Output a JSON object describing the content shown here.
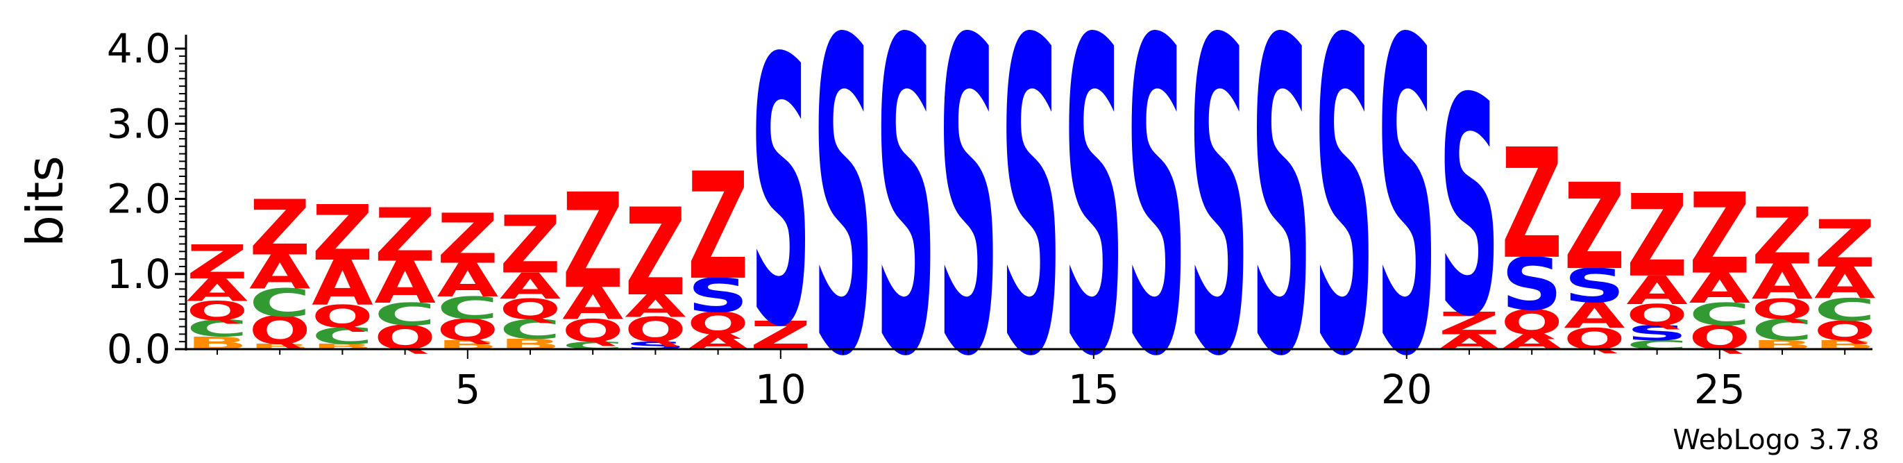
{
  "chart_data": {
    "type": "sequence-logo",
    "ylabel": "bits",
    "ylim": [
      0,
      4.0
    ],
    "y_ticks": [
      "0.0",
      "1.0",
      "2.0",
      "3.0",
      "4.0"
    ],
    "x_ticks": [
      "5",
      "10",
      "15",
      "20",
      "25"
    ],
    "x_tick_positions": [
      5,
      10,
      15,
      20,
      25
    ],
    "positions": [
      1,
      27
    ],
    "colors": {
      "Z": "#ff0000",
      "A": "#ff0000",
      "S": "#0000ff",
      "C": "#339933",
      "Q": "#ff0000",
      "B": "#ff8c00"
    },
    "columns": [
      {
        "position": 1,
        "letters": [
          {
            "letter": "B",
            "height": 0.17
          },
          {
            "letter": "C",
            "height": 0.22
          },
          {
            "letter": "Q",
            "height": 0.25
          },
          {
            "letter": "A",
            "height": 0.3
          },
          {
            "letter": "Z",
            "height": 0.45
          }
        ]
      },
      {
        "position": 2,
        "letters": [
          {
            "letter": "B",
            "height": 0.07
          },
          {
            "letter": "Q",
            "height": 0.37
          },
          {
            "letter": "C",
            "height": 0.37
          },
          {
            "letter": "A",
            "height": 0.45
          },
          {
            "letter": "Z",
            "height": 0.74
          }
        ]
      },
      {
        "position": 3,
        "letters": [
          {
            "letter": "B",
            "height": 0.07
          },
          {
            "letter": "C",
            "height": 0.22
          },
          {
            "letter": "Q",
            "height": 0.3
          },
          {
            "letter": "A",
            "height": 0.6
          },
          {
            "letter": "Z",
            "height": 0.74
          }
        ]
      },
      {
        "position": 4,
        "letters": [
          {
            "letter": "Q",
            "height": 0.32
          },
          {
            "letter": "C",
            "height": 0.3
          },
          {
            "letter": "A",
            "height": 0.56
          },
          {
            "letter": "Z",
            "height": 0.71
          }
        ]
      },
      {
        "position": 5,
        "letters": [
          {
            "letter": "B",
            "height": 0.12
          },
          {
            "letter": "Q",
            "height": 0.28
          },
          {
            "letter": "C",
            "height": 0.3
          },
          {
            "letter": "A",
            "height": 0.45
          },
          {
            "letter": "Z",
            "height": 0.67
          }
        ]
      },
      {
        "position": 6,
        "letters": [
          {
            "letter": "B",
            "height": 0.14
          },
          {
            "letter": "C",
            "height": 0.26
          },
          {
            "letter": "Q",
            "height": 0.27
          },
          {
            "letter": "A",
            "height": 0.35
          },
          {
            "letter": "Z",
            "height": 0.77
          }
        ]
      },
      {
        "position": 7,
        "letters": [
          {
            "letter": "C",
            "height": 0.1
          },
          {
            "letter": "Q",
            "height": 0.3
          },
          {
            "letter": "A",
            "height": 0.43
          },
          {
            "letter": "Z",
            "height": 1.27
          }
        ]
      },
      {
        "position": 8,
        "letters": [
          {
            "letter": "S",
            "height": 0.1
          },
          {
            "letter": "Q",
            "height": 0.33
          },
          {
            "letter": "A",
            "height": 0.3
          },
          {
            "letter": "Z",
            "height": 1.17
          }
        ]
      },
      {
        "position": 9,
        "letters": [
          {
            "letter": "A",
            "height": 0.2
          },
          {
            "letter": "Q",
            "height": 0.3
          },
          {
            "letter": "S",
            "height": 0.45
          },
          {
            "letter": "Z",
            "height": 1.43
          }
        ]
      },
      {
        "position": 10,
        "letters": [
          {
            "letter": "Z",
            "height": 0.38
          },
          {
            "letter": "S",
            "height": 3.55
          }
        ]
      },
      {
        "position": 11,
        "letters": [
          {
            "letter": "S",
            "height": 4.18
          }
        ]
      },
      {
        "position": 12,
        "letters": [
          {
            "letter": "S",
            "height": 4.18
          }
        ]
      },
      {
        "position": 13,
        "letters": [
          {
            "letter": "S",
            "height": 4.18
          }
        ]
      },
      {
        "position": 14,
        "letters": [
          {
            "letter": "S",
            "height": 4.18
          }
        ]
      },
      {
        "position": 15,
        "letters": [
          {
            "letter": "S",
            "height": 4.18
          }
        ]
      },
      {
        "position": 16,
        "letters": [
          {
            "letter": "S",
            "height": 4.18
          }
        ]
      },
      {
        "position": 17,
        "letters": [
          {
            "letter": "S",
            "height": 4.18
          }
        ]
      },
      {
        "position": 18,
        "letters": [
          {
            "letter": "S",
            "height": 4.18
          }
        ]
      },
      {
        "position": 19,
        "letters": [
          {
            "letter": "S",
            "height": 4.18
          }
        ]
      },
      {
        "position": 20,
        "letters": [
          {
            "letter": "S",
            "height": 4.18
          }
        ]
      },
      {
        "position": 21,
        "letters": [
          {
            "letter": "A",
            "height": 0.2
          },
          {
            "letter": "Z",
            "height": 0.3
          },
          {
            "letter": "S",
            "height": 2.9
          }
        ]
      },
      {
        "position": 22,
        "letters": [
          {
            "letter": "A",
            "height": 0.2
          },
          {
            "letter": "Q",
            "height": 0.33
          },
          {
            "letter": "S",
            "height": 0.7
          },
          {
            "letter": "Z",
            "height": 1.47
          }
        ]
      },
      {
        "position": 23,
        "letters": [
          {
            "letter": "Q",
            "height": 0.28
          },
          {
            "letter": "A",
            "height": 0.35
          },
          {
            "letter": "S",
            "height": 0.45
          },
          {
            "letter": "Z",
            "height": 1.15
          }
        ]
      },
      {
        "position": 24,
        "letters": [
          {
            "letter": "C",
            "height": 0.12
          },
          {
            "letter": "S",
            "height": 0.2
          },
          {
            "letter": "Q",
            "height": 0.28
          },
          {
            "letter": "A",
            "height": 0.38
          },
          {
            "letter": "Z",
            "height": 1.1
          }
        ]
      },
      {
        "position": 25,
        "letters": [
          {
            "letter": "Q",
            "height": 0.32
          },
          {
            "letter": "C",
            "height": 0.3
          },
          {
            "letter": "A",
            "height": 0.4
          },
          {
            "letter": "Z",
            "height": 1.08
          }
        ]
      },
      {
        "position": 26,
        "letters": [
          {
            "letter": "B",
            "height": 0.12
          },
          {
            "letter": "C",
            "height": 0.28
          },
          {
            "letter": "Q",
            "height": 0.27
          },
          {
            "letter": "A",
            "height": 0.47
          },
          {
            "letter": "Z",
            "height": 0.76
          }
        ]
      },
      {
        "position": 27,
        "letters": [
          {
            "letter": "B",
            "height": 0.12
          },
          {
            "letter": "Q",
            "height": 0.26
          },
          {
            "letter": "C",
            "height": 0.3
          },
          {
            "letter": "A",
            "height": 0.42
          },
          {
            "letter": "Z",
            "height": 0.63
          }
        ]
      }
    ]
  },
  "footer": {
    "credit": "WebLogo 3.7.8"
  }
}
